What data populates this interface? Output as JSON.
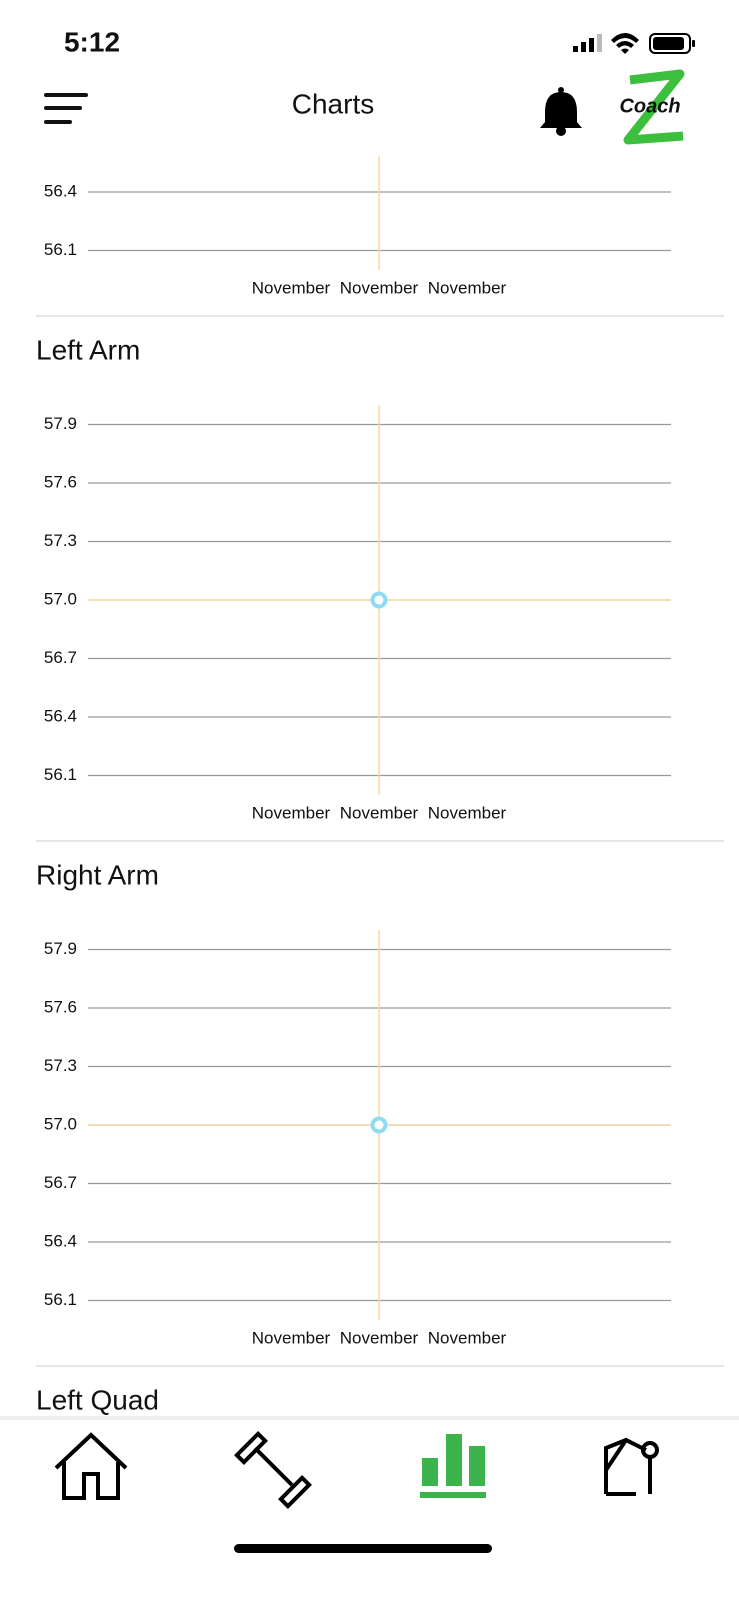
{
  "status_bar": {
    "time": "5:12"
  },
  "header": {
    "title": "Charts",
    "logo": "Coach"
  },
  "chart_data": [
    {
      "type": "line",
      "categories": [
        "November",
        "November",
        "November"
      ],
      "ylim": [
        56,
        58
      ],
      "yticks": [
        56.1,
        56.4
      ]
    },
    {
      "type": "line",
      "title": "Left Arm",
      "categories": [
        "November",
        "November",
        "November"
      ],
      "values": [
        null,
        57,
        null
      ],
      "color": "#8fdcf0",
      "ylim": [
        56,
        58
      ],
      "yticks": [
        56.1,
        56.4,
        56.7,
        {
          "value": 57,
          "label": "57.0"
        },
        57.3,
        57.6,
        57.9
      ]
    },
    {
      "type": "line",
      "title": "Right Arm",
      "categories": [
        "November",
        "November",
        "November"
      ],
      "values": [
        null,
        57,
        null
      ],
      "color": "#8fdcf0",
      "ylim": [
        56,
        58
      ],
      "yticks": [
        56.1,
        56.4,
        56.7,
        {
          "value": 57,
          "label": "57.0"
        },
        57.3,
        57.6,
        57.9
      ]
    },
    {
      "type": "line",
      "title": "Left Quad"
    }
  ]
}
